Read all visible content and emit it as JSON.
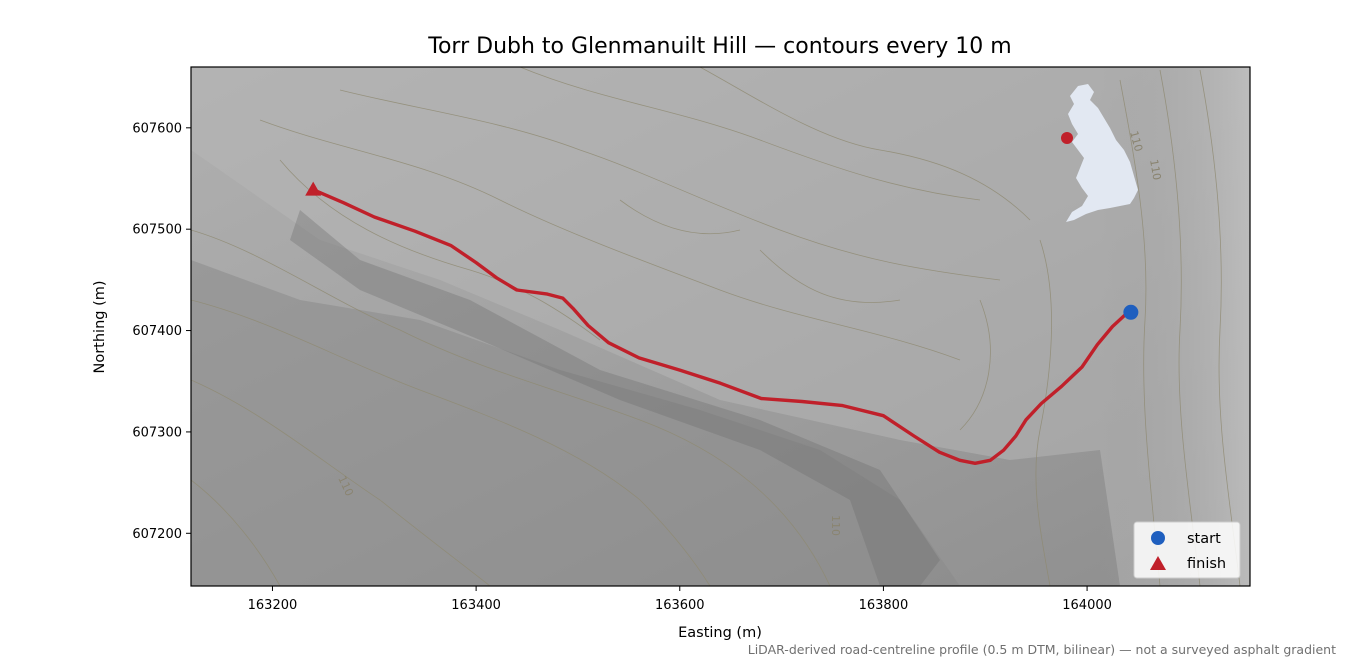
{
  "chart_data": {
    "type": "line",
    "title": "Torr Dubh to Glenmanuilt Hill — contours every 10 m",
    "xlabel": "Easting (m)",
    "ylabel": "Northing (m)",
    "xlim": [
      163120,
      164160
    ],
    "ylim": [
      607148,
      607660
    ],
    "x_ticks": [
      163200,
      163400,
      163600,
      163800,
      164000
    ],
    "y_ticks": [
      607200,
      607300,
      607400,
      607500,
      607600
    ],
    "x_tick_labels": [
      "163200",
      "163400",
      "163600",
      "163800",
      "164000"
    ],
    "y_tick_labels": [
      "607200",
      "607300",
      "607400",
      "607500",
      "607600"
    ],
    "grid": false,
    "legend_position": "lower-right",
    "route": {
      "color": "#c0202a",
      "x": [
        164038,
        164025,
        164010,
        163995,
        163975,
        163955,
        163940,
        163930,
        163918,
        163905,
        163890,
        163875,
        163855,
        163830,
        163800,
        163760,
        163720,
        163680,
        163640,
        163600,
        163560,
        163530,
        163510,
        163495,
        163485,
        163470,
        163440,
        163420,
        163400,
        163375,
        163340,
        163300,
        163270,
        163240
      ],
      "y": [
        607416,
        607404,
        607386,
        607364,
        607345,
        607328,
        607312,
        607296,
        607282,
        607272,
        607269,
        607272,
        607280,
        607296,
        607316,
        607326,
        607330,
        607333,
        607348,
        607361,
        607373,
        607388,
        607405,
        607422,
        607432,
        607436,
        607440,
        607452,
        607467,
        607484,
        607498,
        607512,
        607526,
        607539
      ]
    },
    "start": {
      "label": "start",
      "x": 164043,
      "y": 607418,
      "color": "#1f5fbf"
    },
    "finish": {
      "label": "finish",
      "x": 163240,
      "y": 607539,
      "color": "#c0202a"
    },
    "contour_labels": [
      "110",
      "110",
      "110",
      "110"
    ],
    "inset": {
      "land_color": "#e2e8f2",
      "marker_color": "#c0202a"
    },
    "credit": "LiDAR-derived road-centreline profile (0.5 m DTM, bilinear) — not a surveyed asphalt gradient",
    "colors": {
      "frame": "#000000",
      "hillshade_mid": "#a8a8a8"
    }
  }
}
